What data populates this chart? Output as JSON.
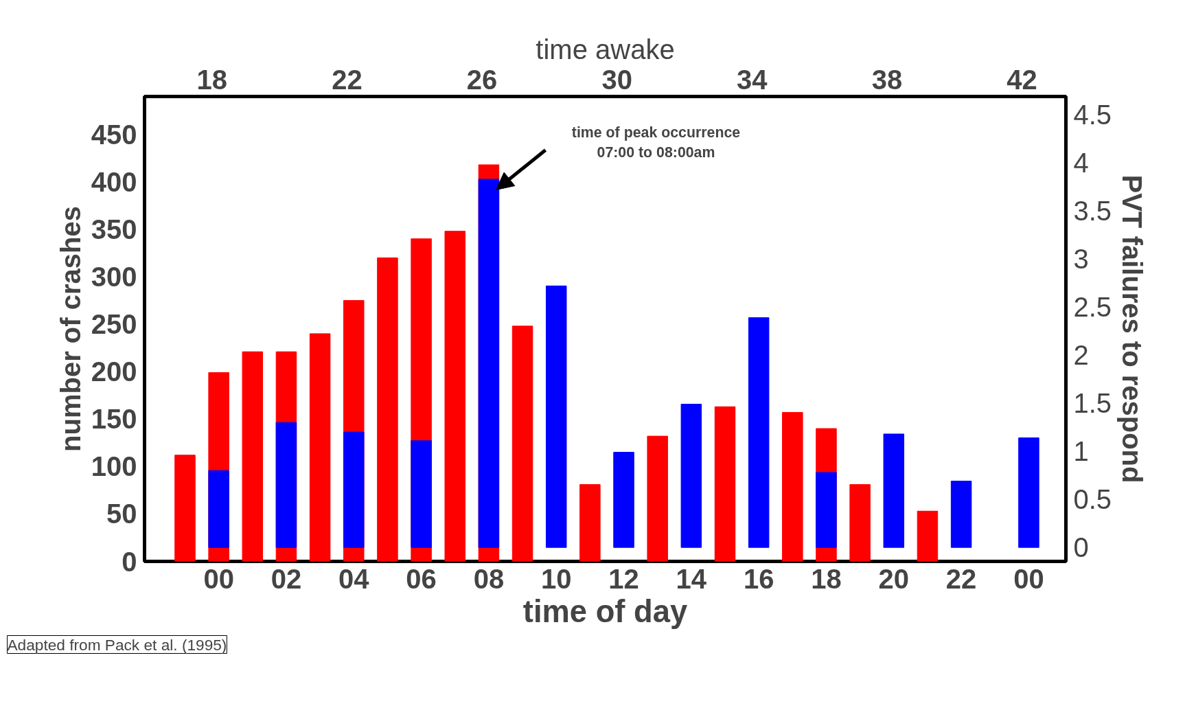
{
  "chart_data": {
    "type": "bar",
    "xlabel": "time of day",
    "ylabel": "number of crashes",
    "y2label": "PVT failures to respond",
    "x2label": "time awake",
    "xlim": [
      -2.2,
      25.1
    ],
    "xticks": [
      {
        "value": 0,
        "label": "00"
      },
      {
        "value": 2,
        "label": "02"
      },
      {
        "value": 4,
        "label": "04"
      },
      {
        "value": 6,
        "label": "06"
      },
      {
        "value": 8,
        "label": "08"
      },
      {
        "value": 10,
        "label": "10"
      },
      {
        "value": 12,
        "label": "12"
      },
      {
        "value": 14,
        "label": "14"
      },
      {
        "value": 16,
        "label": "16"
      },
      {
        "value": 18,
        "label": "18"
      },
      {
        "value": 20,
        "label": "20"
      },
      {
        "value": 22,
        "label": "22"
      },
      {
        "value": 24,
        "label": "00"
      }
    ],
    "x2lim": [
      16.0,
      43.3
    ],
    "x2ticks": [
      18,
      22,
      26,
      30,
      34,
      38,
      42
    ],
    "ylim": [
      0,
      490
    ],
    "yticks": [
      0,
      50,
      100,
      150,
      200,
      250,
      300,
      350,
      400,
      450
    ],
    "y2lim": [
      -0.145,
      4.69
    ],
    "y2ticks": [
      0,
      0.5,
      1.0,
      1.5,
      2.0,
      2.5,
      3.0,
      3.5,
      4.0,
      4.5
    ],
    "series": [
      {
        "color": "#ff0000",
        "x": [
          -1,
          0,
          1,
          2,
          3,
          4,
          5,
          6,
          7,
          8,
          9,
          11,
          13,
          14,
          15,
          16,
          17,
          18,
          19,
          20,
          21
        ],
        "values": [
          112,
          199,
          221,
          221,
          240,
          275,
          320,
          340,
          348,
          418,
          248,
          81,
          132,
          null,
          163,
          null,
          157,
          140,
          81,
          null,
          53
        ]
      },
      {
        "color": "#0000ff",
        "axis": "y2",
        "x": [
          0,
          2,
          4,
          6,
          8,
          10,
          12,
          14,
          16,
          18,
          20,
          22,
          24
        ],
        "values": [
          0.8,
          1.3,
          1.2,
          1.11,
          3.83,
          2.72,
          0.99,
          1.49,
          2.39,
          0.78,
          1.18,
          0.69,
          1.14
        ]
      }
    ],
    "annotations": [
      "time of peak occurrence\n07:00 to 08:00am",
      "Adapted from Pack et al. (1995)"
    ],
    "grid": false
  }
}
